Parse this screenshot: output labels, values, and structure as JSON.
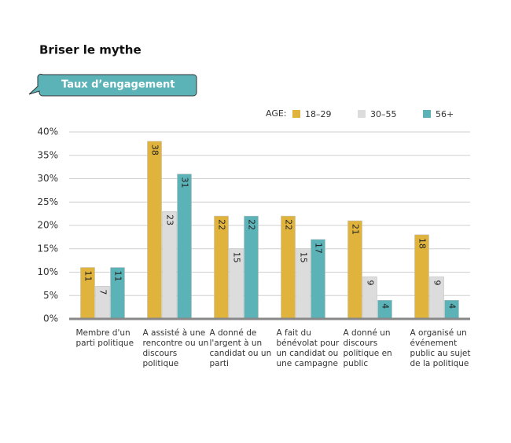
{
  "chart_data": {
    "type": "bar",
    "title": "Briser le mythe",
    "subtitle": "Taux d’engagement",
    "legend_title": "AGE:",
    "categories": [
      "Membre d'un parti politique",
      "A assisté à une rencontre ou un discours politique",
      "A donné de l'argent à un candidat ou un parti",
      "A fait du bénévolat pour un candidat ou une campagne",
      "A donné un discours politique en public",
      "A organisé un événement public au sujet de la politique"
    ],
    "series": [
      {
        "name": "18–29",
        "color": "#e0b43c",
        "values": [
          11,
          38,
          22,
          22,
          21,
          18
        ]
      },
      {
        "name": "30–55",
        "color": "#dcdcdc",
        "values": [
          7,
          23,
          15,
          15,
          9,
          9
        ]
      },
      {
        "name": "56+",
        "color": "#5bb3b8",
        "values": [
          11,
          31,
          22,
          17,
          4,
          4
        ]
      }
    ],
    "ylim": [
      0,
      40
    ],
    "yticks": [
      {
        "value": 0,
        "label": "0%"
      },
      {
        "value": 5,
        "label": "5%"
      },
      {
        "value": 10,
        "label": "10%"
      },
      {
        "value": 15,
        "label": "15%"
      },
      {
        "value": 20,
        "label": "20%"
      },
      {
        "value": 25,
        "label": "25%"
      },
      {
        "value": 30,
        "label": "30%"
      },
      {
        "value": 35,
        "label": "35%"
      },
      {
        "value": 40,
        "label": "40%"
      }
    ],
    "grid": true
  }
}
